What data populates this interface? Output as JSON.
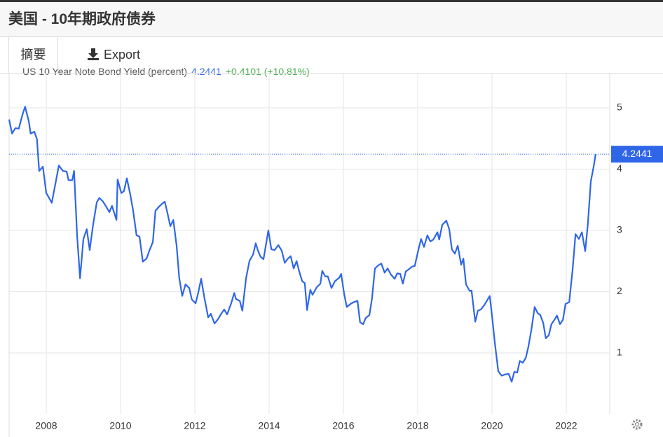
{
  "header": {
    "title": "美国 - 10年期政府债券"
  },
  "tabs": [
    "摘要",
    "Export"
  ],
  "chart_data": {
    "type": "line",
    "legend_name": "US 10 Year Note Bond Yield (percent)",
    "legend_change": "+0.4101 (+10.81%)",
    "x": [
      2007.0,
      2007.08,
      2007.17,
      2007.26,
      2007.36,
      2007.43,
      2007.53,
      2007.58,
      2007.68,
      2007.75,
      2007.81,
      2007.91,
      2008.0,
      2008.15,
      2008.34,
      2008.45,
      2008.55,
      2008.6,
      2008.7,
      2008.75,
      2008.83,
      2008.91,
      2009.0,
      2009.09,
      2009.17,
      2009.26,
      2009.36,
      2009.43,
      2009.53,
      2009.62,
      2009.7,
      2009.77,
      2009.89,
      2009.92,
      2010.02,
      2010.09,
      2010.17,
      2010.26,
      2010.34,
      2010.43,
      2010.51,
      2010.6,
      2010.7,
      2010.77,
      2010.87,
      2010.94,
      2011.04,
      2011.11,
      2011.19,
      2011.26,
      2011.34,
      2011.42,
      2011.51,
      2011.58,
      2011.66,
      2011.75,
      2011.85,
      2011.92,
      2012.02,
      2012.09,
      2012.17,
      2012.26,
      2012.36,
      2012.43,
      2012.53,
      2012.62,
      2012.7,
      2012.79,
      2012.87,
      2012.98,
      2013.06,
      2013.11,
      2013.21,
      2013.28,
      2013.38,
      2013.47,
      2013.57,
      2013.64,
      2013.7,
      2013.77,
      2013.85,
      2013.92,
      2013.98,
      2014.06,
      2014.15,
      2014.25,
      2014.34,
      2014.42,
      2014.49,
      2014.58,
      2014.66,
      2014.74,
      2014.81,
      2014.89,
      2014.96,
      2015.02,
      2015.11,
      2015.17,
      2015.28,
      2015.38,
      2015.43,
      2015.51,
      2015.58,
      2015.68,
      2015.77,
      2015.89,
      2015.94,
      2016.02,
      2016.09,
      2016.19,
      2016.28,
      2016.38,
      2016.45,
      2016.53,
      2016.6,
      2016.7,
      2016.77,
      2016.85,
      2016.94,
      2017.02,
      2017.11,
      2017.19,
      2017.28,
      2017.38,
      2017.45,
      2017.53,
      2017.6,
      2017.68,
      2017.75,
      2017.85,
      2017.92,
      2018.02,
      2018.09,
      2018.17,
      2018.26,
      2018.34,
      2018.42,
      2018.53,
      2018.58,
      2018.66,
      2018.77,
      2018.85,
      2018.92,
      2019.0,
      2019.08,
      2019.17,
      2019.23,
      2019.3,
      2019.4,
      2019.45,
      2019.55,
      2019.62,
      2019.7,
      2019.79,
      2019.87,
      2019.94,
      2020.0,
      2020.08,
      2020.17,
      2020.26,
      2020.36,
      2020.45,
      2020.53,
      2020.6,
      2020.68,
      2020.75,
      2020.83,
      2020.91,
      2020.98,
      2021.06,
      2021.15,
      2021.23,
      2021.3,
      2021.38,
      2021.45,
      2021.53,
      2021.6,
      2021.68,
      2021.75,
      2021.83,
      2021.91,
      2021.98,
      2022.08,
      2022.17,
      2022.25,
      2022.34,
      2022.42,
      2022.51,
      2022.58,
      2022.66,
      2022.74,
      2022.79
    ],
    "series": [
      {
        "name": "US 10 Year Note Bond Yield (percent)",
        "color": "#2f66e8",
        "values": [
          4.81,
          4.58,
          4.67,
          4.66,
          4.89,
          5.02,
          4.78,
          4.58,
          4.61,
          4.49,
          3.97,
          4.04,
          3.61,
          3.45,
          4.06,
          3.97,
          3.96,
          3.82,
          3.82,
          3.97,
          2.92,
          2.22,
          2.86,
          3.02,
          2.68,
          3.09,
          3.46,
          3.53,
          3.47,
          3.38,
          3.3,
          3.4,
          3.17,
          3.83,
          3.61,
          3.64,
          3.85,
          3.59,
          3.32,
          2.92,
          2.9,
          2.49,
          2.54,
          2.66,
          2.81,
          3.32,
          3.39,
          3.43,
          3.47,
          3.29,
          3.07,
          3.17,
          2.75,
          2.23,
          1.93,
          2.12,
          2.06,
          1.87,
          1.81,
          1.98,
          2.21,
          1.89,
          1.58,
          1.64,
          1.48,
          1.55,
          1.63,
          1.71,
          1.63,
          1.81,
          1.98,
          1.88,
          1.85,
          1.69,
          2.22,
          2.5,
          2.61,
          2.79,
          2.67,
          2.57,
          2.53,
          2.79,
          3.0,
          2.69,
          2.68,
          2.76,
          2.67,
          2.47,
          2.53,
          2.58,
          2.38,
          2.5,
          2.33,
          2.17,
          2.14,
          1.7,
          2.03,
          1.95,
          2.07,
          2.13,
          2.34,
          2.25,
          2.25,
          2.06,
          2.17,
          2.23,
          2.29,
          1.96,
          1.75,
          1.8,
          1.83,
          1.85,
          1.5,
          1.47,
          1.57,
          1.62,
          1.89,
          2.38,
          2.43,
          2.46,
          2.31,
          2.38,
          2.28,
          2.21,
          2.3,
          2.29,
          2.13,
          2.33,
          2.36,
          2.41,
          2.42,
          2.69,
          2.86,
          2.73,
          2.92,
          2.82,
          2.85,
          2.97,
          2.85,
          3.09,
          3.16,
          3.02,
          2.69,
          2.62,
          2.75,
          2.44,
          2.54,
          2.12,
          2.01,
          2.02,
          1.51,
          1.69,
          1.71,
          1.78,
          1.86,
          1.93,
          1.61,
          1.15,
          0.7,
          0.63,
          0.65,
          0.66,
          0.53,
          0.69,
          0.68,
          0.87,
          0.84,
          0.92,
          1.1,
          1.38,
          1.75,
          1.65,
          1.62,
          1.49,
          1.24,
          1.29,
          1.47,
          1.54,
          1.61,
          1.47,
          1.54,
          1.8,
          1.83,
          2.36,
          2.94,
          2.86,
          2.97,
          2.66,
          3.09,
          3.8,
          4.05,
          4.2441
        ]
      }
    ],
    "xlim": [
      2007,
      2023.17
    ],
    "ylim": [
      0,
      5.56
    ],
    "xticks": [
      2008,
      2010,
      2012,
      2014,
      2016,
      2018,
      2020,
      2022
    ],
    "yticks": [
      1,
      2,
      3,
      4,
      5
    ],
    "grid": true
  }
}
